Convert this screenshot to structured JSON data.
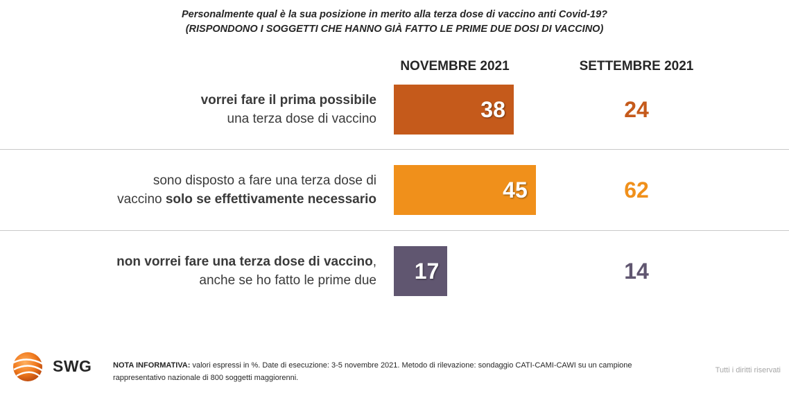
{
  "title": {
    "line1": "Personalmente qual è la sua posizione in merito alla terza dose di vaccino anti Covid-19?",
    "line2": "(RISPONDONO I SOGGETTI CHE HANNO GIÀ FATTO LE PRIME DUE DOSI DI VACCINO)"
  },
  "chart_data": {
    "type": "bar",
    "orientation": "horizontal",
    "columns": [
      "NOVEMBRE 2021",
      "SETTEMBRE 2021"
    ],
    "categories": [
      {
        "parts": [
          {
            "text": "vorrei fare il prima possibile",
            "bold": true,
            "br": true
          },
          {
            "text": "una terza dose di vaccino",
            "bold": false
          }
        ]
      },
      {
        "parts": [
          {
            "text": "sono disposto a fare una terza dose di",
            "bold": false,
            "br": true
          },
          {
            "text": "vaccino ",
            "bold": false
          },
          {
            "text": "solo se effettivamente necessario",
            "bold": true
          }
        ]
      },
      {
        "parts": [
          {
            "text": "non vorrei fare una terza dose di vaccino",
            "bold": true
          },
          {
            "text": ",",
            "bold": false,
            "br": true
          },
          {
            "text": "anche se ho fatto le prime due",
            "bold": false
          }
        ]
      }
    ],
    "series": [
      {
        "name": "NOVEMBRE 2021",
        "values": [
          38,
          45,
          17
        ]
      },
      {
        "name": "SETTEMBRE 2021",
        "values": [
          24,
          62,
          14
        ]
      }
    ],
    "colors": [
      "#c55a1b",
      "#f0901b",
      "#605670"
    ],
    "xlim": [
      0,
      100
    ],
    "unit": "%"
  },
  "logo": {
    "text": "SWG",
    "icon": "orange-globe-icon"
  },
  "note": {
    "label": "NOTA INFORMATIVA:",
    "text": " valori espressi in %. Date di esecuzione: 3-5 novembre 2021. Metodo di rilevazione: sondaggio CATI-CAMI-CAWI su un campione rappresentativo nazionale di 800 soggetti maggiorenni."
  },
  "rights": "Tutti i diritti riservati"
}
